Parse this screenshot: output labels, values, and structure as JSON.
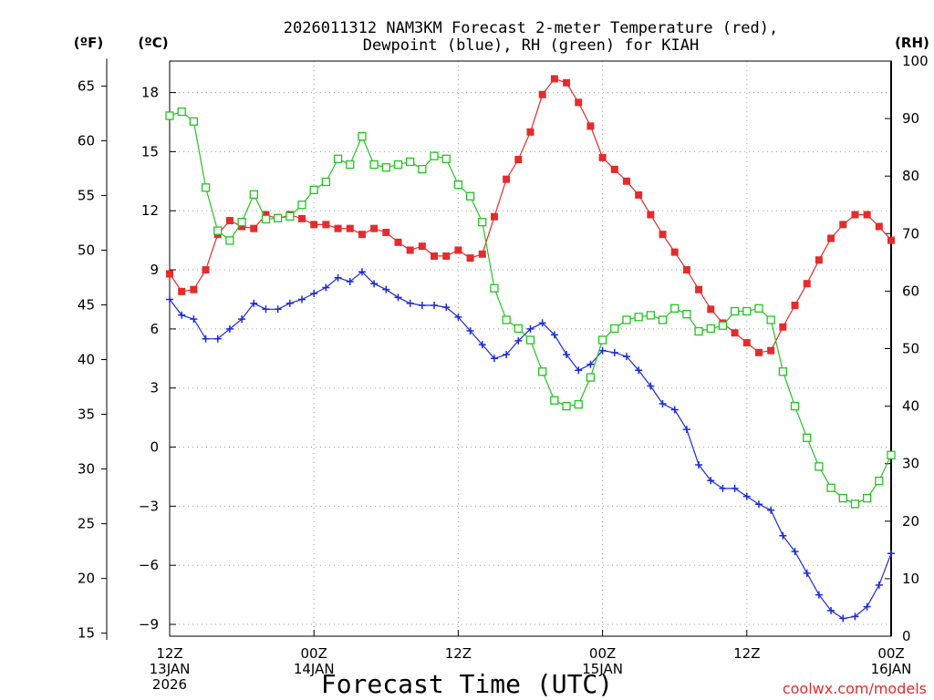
{
  "chart_data": {
    "type": "line",
    "title_line1": "2026011312 NAM3KM Forecast 2-meter Temperature (red),",
    "title_line2": "Dewpoint (blue), RH (green) for KIAH",
    "xlabel": "Forecast Time (UTC)",
    "watermark": "coolwx.com/models",
    "unit_f": "(ºF)",
    "unit_c": "(ºC)",
    "unit_rh": "(RH)",
    "x_range_hours": [
      0,
      60
    ],
    "x_ticks": [
      {
        "hour": 0,
        "l1": "12Z",
        "l2": "13JAN",
        "l3": "2026"
      },
      {
        "hour": 12,
        "l1": "00Z",
        "l2": "14JAN",
        "l3": ""
      },
      {
        "hour": 24,
        "l1": "12Z",
        "l2": "",
        "l3": ""
      },
      {
        "hour": 36,
        "l1": "00Z",
        "l2": "15JAN",
        "l3": ""
      },
      {
        "hour": 48,
        "l1": "12Z",
        "l2": "",
        "l3": ""
      },
      {
        "hour": 60,
        "l1": "00Z",
        "l2": "16JAN",
        "l3": ""
      }
    ],
    "y_celsius": {
      "range": [
        -9.6,
        19.6
      ],
      "ticks": [
        "-9",
        "-6",
        "-3",
        "0",
        "3",
        "6",
        "9",
        "12",
        "15",
        "18"
      ]
    },
    "y_fahrenheit": {
      "ticks": [
        "15",
        "20",
        "25",
        "30",
        "35",
        "40",
        "45",
        "50",
        "55",
        "60",
        "65"
      ]
    },
    "y_rh": {
      "range": [
        0,
        100
      ],
      "ticks": [
        "0",
        "10",
        "20",
        "30",
        "40",
        "50",
        "60",
        "70",
        "80",
        "90",
        "100"
      ]
    },
    "colors": {
      "temperature": "#e52b2b",
      "dewpoint": "#1c2bd9",
      "rh": "#22c422",
      "grid": "#a0a0a0"
    },
    "series": [
      {
        "name": "Temperature (°C)",
        "color": "#e52b2b",
        "marker": "filled-square",
        "axis": "celsius",
        "x": [
          0,
          1,
          2,
          3,
          4,
          5,
          6,
          7,
          8,
          9,
          10,
          11,
          12,
          13,
          14,
          15,
          16,
          17,
          18,
          19,
          20,
          21,
          22,
          23,
          24,
          25,
          26,
          27,
          28,
          29,
          30,
          31,
          32,
          33,
          34,
          35,
          36,
          37,
          38,
          39,
          40,
          41,
          42,
          43,
          44,
          45,
          46,
          47,
          48,
          49,
          50,
          51,
          52,
          53,
          54,
          55,
          56,
          57,
          58,
          59,
          60
        ],
        "values": [
          8.8,
          7.9,
          8.0,
          9.0,
          10.8,
          11.5,
          11.2,
          11.1,
          11.8,
          11.6,
          11.8,
          11.6,
          11.3,
          11.3,
          11.1,
          11.1,
          10.8,
          11.1,
          10.9,
          10.4,
          10.0,
          10.2,
          9.7,
          9.7,
          10.0,
          9.6,
          9.8,
          11.7,
          13.6,
          14.6,
          16.0,
          17.9,
          18.7,
          18.5,
          17.5,
          16.3,
          14.7,
          14.1,
          13.5,
          12.8,
          11.8,
          10.8,
          9.9,
          9.0,
          8.0,
          7.0,
          6.3,
          5.8,
          5.3,
          4.8,
          4.9,
          6.1,
          7.2,
          8.3,
          9.5,
          10.6,
          11.3,
          11.8,
          11.8,
          11.2,
          10.5
        ]
      },
      {
        "name": "Dewpoint (°C)",
        "color": "#1c2bd9",
        "marker": "plus",
        "axis": "celsius",
        "x": [
          0,
          1,
          2,
          3,
          4,
          5,
          6,
          7,
          8,
          9,
          10,
          11,
          12,
          13,
          14,
          15,
          16,
          17,
          18,
          19,
          20,
          21,
          22,
          23,
          24,
          25,
          26,
          27,
          28,
          29,
          30,
          31,
          32,
          33,
          34,
          35,
          36,
          37,
          38,
          39,
          40,
          41,
          42,
          43,
          44,
          45,
          46,
          47,
          48,
          49,
          50,
          51,
          52,
          53,
          54,
          55,
          56,
          57,
          58,
          59,
          60
        ],
        "values": [
          7.5,
          6.7,
          6.5,
          5.5,
          5.5,
          6.0,
          6.5,
          7.3,
          7.0,
          7.0,
          7.3,
          7.5,
          7.8,
          8.1,
          8.6,
          8.4,
          8.9,
          8.3,
          8.0,
          7.6,
          7.3,
          7.2,
          7.2,
          7.1,
          6.6,
          5.9,
          5.2,
          4.5,
          4.7,
          5.4,
          6.0,
          6.3,
          5.7,
          4.7,
          3.9,
          4.2,
          4.9,
          4.8,
          4.6,
          3.9,
          3.1,
          2.2,
          1.9,
          0.9,
          -0.9,
          -1.7,
          -2.1,
          -2.1,
          -2.5,
          -2.9,
          -3.2,
          -4.5,
          -5.3,
          -6.4,
          -7.5,
          -8.3,
          -8.7,
          -8.6,
          -8.1,
          -7.0,
          -5.4
        ]
      },
      {
        "name": "RH (%)",
        "color": "#22c422",
        "marker": "open-square",
        "axis": "rh",
        "x": [
          0,
          1,
          2,
          3,
          4,
          5,
          6,
          7,
          8,
          9,
          10,
          11,
          12,
          13,
          14,
          15,
          16,
          17,
          18,
          19,
          20,
          21,
          22,
          23,
          24,
          25,
          26,
          27,
          28,
          29,
          30,
          31,
          32,
          33,
          34,
          35,
          36,
          37,
          38,
          39,
          40,
          41,
          42,
          43,
          44,
          45,
          46,
          47,
          48,
          49,
          50,
          51,
          52,
          53,
          54,
          55,
          56,
          57,
          58,
          59,
          60
        ],
        "values": [
          90.5,
          91.2,
          89.5,
          78.0,
          70.5,
          68.8,
          72.0,
          76.8,
          72.5,
          72.7,
          73.0,
          75.0,
          77.6,
          79.0,
          83.0,
          82.0,
          86.9,
          82.0,
          81.5,
          82.0,
          82.5,
          81.2,
          83.5,
          83.0,
          78.5,
          76.5,
          72.0,
          60.5,
          55.0,
          53.5,
          51.5,
          46.0,
          41.0,
          40.0,
          40.3,
          45.0,
          51.5,
          53.5,
          55.0,
          55.5,
          55.8,
          55.0,
          57.0,
          56.0,
          53.0,
          53.5,
          54.0,
          56.5,
          56.5,
          57.0,
          55.0,
          46.0,
          40.0,
          34.5,
          29.5,
          25.8,
          24.0,
          23.0,
          24.0,
          27.0,
          31.5
        ]
      }
    ]
  }
}
